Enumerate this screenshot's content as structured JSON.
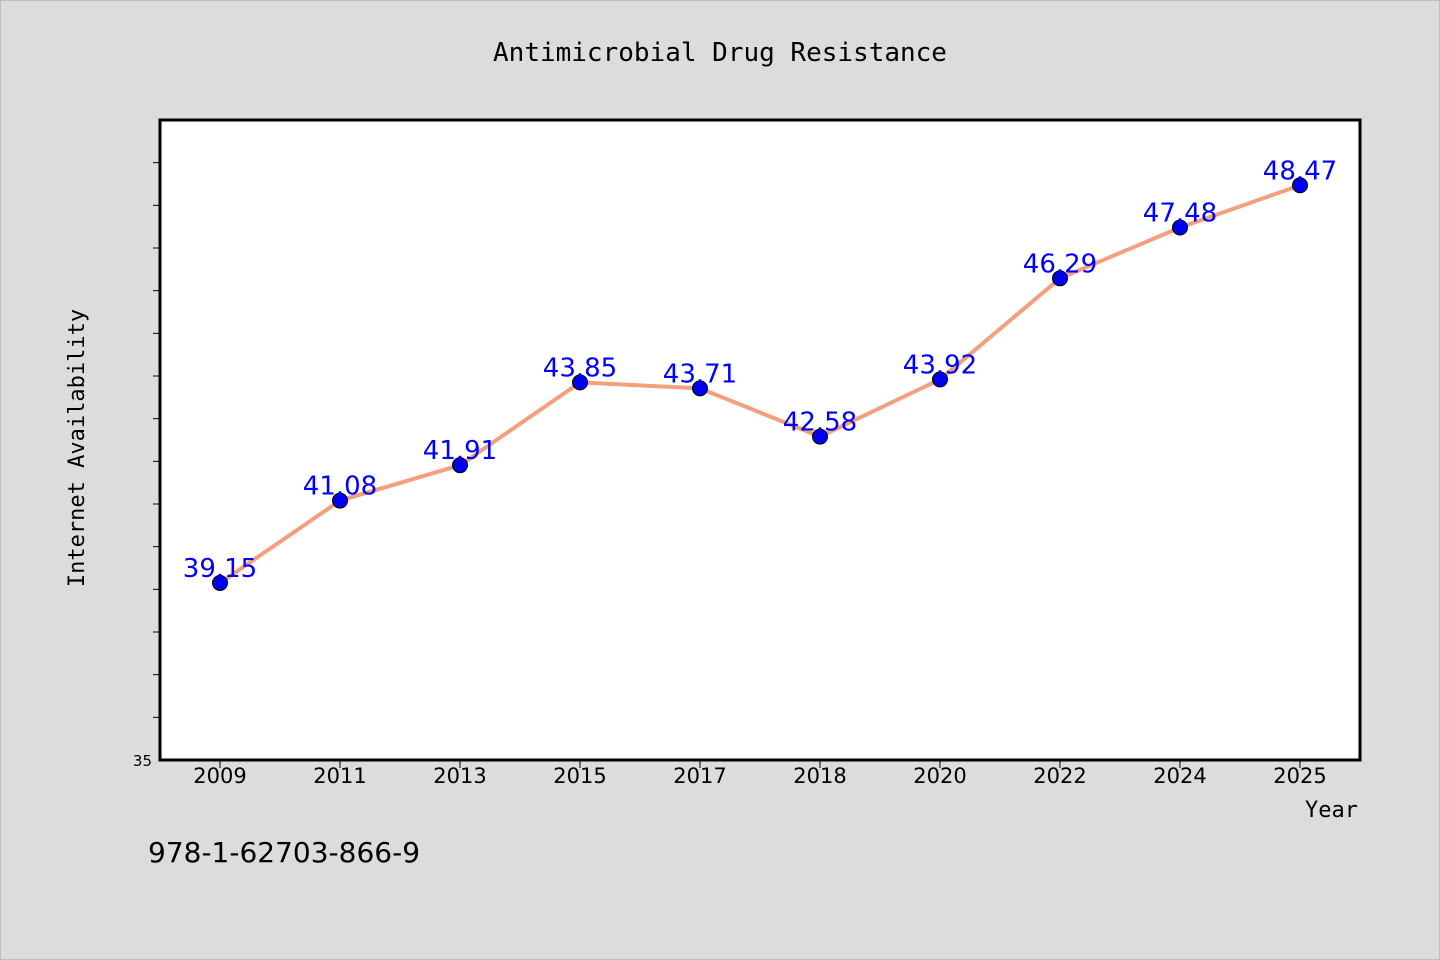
{
  "chart_data": {
    "type": "line",
    "title": "Antimicrobial Drug Resistance",
    "xlabel": "Year",
    "ylabel": "Internet Availability",
    "categories": [
      "2009",
      "2011",
      "2013",
      "2015",
      "2017",
      "2018",
      "2020",
      "2022",
      "2024",
      "2025"
    ],
    "series": [
      {
        "values": [
          39.15,
          41.08,
          41.91,
          43.85,
          43.71,
          42.58,
          43.92,
          46.29,
          47.48,
          48.47
        ]
      }
    ],
    "ylim": [
      35,
      50
    ],
    "y_tick_labels": [
      "35"
    ],
    "data_labels": [
      "39.15",
      "41.08",
      "41.91",
      "43.85",
      "43.71",
      "42.58",
      "43.92",
      "46.29",
      "47.48",
      "48.47"
    ],
    "grid": false,
    "colors": {
      "line": "#f4a07e",
      "marker": "#0000ee",
      "label": "#0000ff",
      "background": "#dcdcdc",
      "plot_area": "#ffffff"
    }
  },
  "footer": {
    "isbn": "978-1-62703-866-9"
  }
}
